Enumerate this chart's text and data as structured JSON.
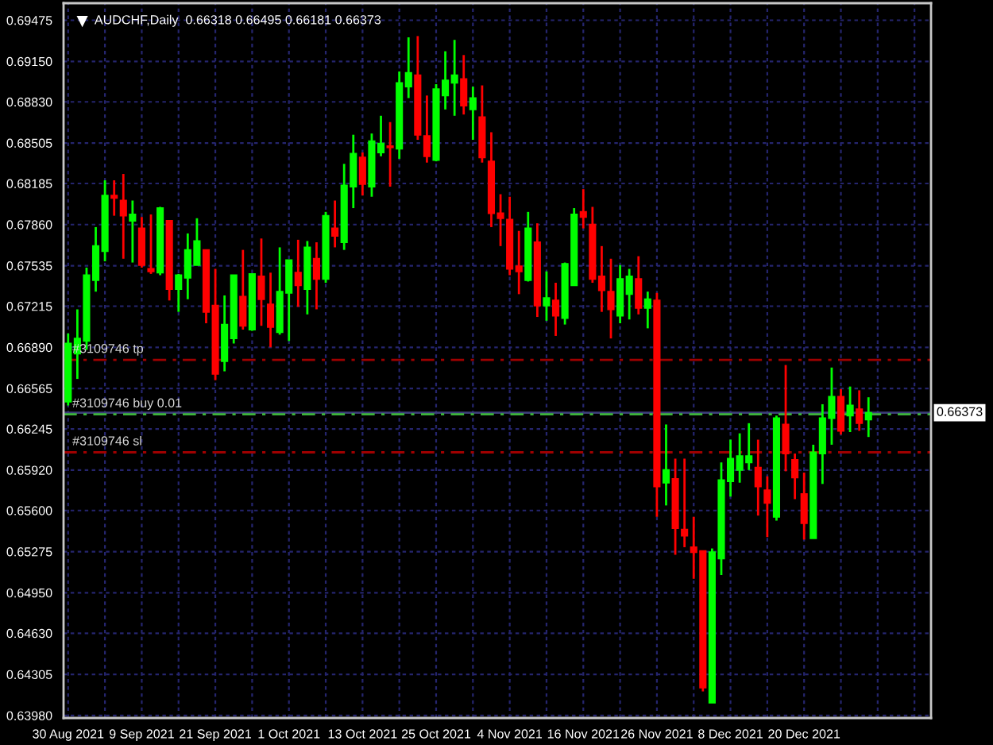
{
  "chart_data": {
    "type": "candlestick",
    "title": "AUDCHF,Daily  0.66318 0.66495 0.66181 0.66373",
    "categories": [
      "30 Aug 2021",
      null,
      null,
      null,
      null,
      null,
      null,
      null,
      "9 Sep 2021",
      null,
      null,
      null,
      null,
      null,
      null,
      null,
      "21 Sep 2021",
      null,
      null,
      null,
      null,
      null,
      null,
      null,
      "1 Oct 2021",
      null,
      null,
      null,
      null,
      null,
      null,
      null,
      "13 Oct 2021",
      null,
      null,
      null,
      null,
      null,
      null,
      null,
      "25 Oct 2021",
      null,
      null,
      null,
      null,
      null,
      null,
      null,
      "4 Nov 2021",
      null,
      null,
      null,
      null,
      null,
      null,
      null,
      "16 Nov 2021",
      null,
      null,
      null,
      null,
      null,
      null,
      null,
      "26 Nov 2021",
      null,
      null,
      null,
      null,
      null,
      null,
      null,
      "8 Dec 2021",
      null,
      null,
      null,
      null,
      null,
      null,
      null,
      "20 Dec 2021",
      null,
      null,
      null,
      null,
      null,
      null,
      null
    ],
    "ohlc": [
      [
        0.6646,
        0.67,
        0.6643,
        0.6692
      ],
      [
        0.6684,
        0.6719,
        0.6664,
        0.6696
      ],
      [
        0.6694,
        0.6752,
        0.6687,
        0.6746
      ],
      [
        0.6742,
        0.6784,
        0.6733,
        0.6769
      ],
      [
        0.6765,
        0.6821,
        0.6757,
        0.6809
      ],
      [
        0.6809,
        0.6821,
        0.6793,
        0.6807
      ],
      [
        0.6805,
        0.6826,
        0.6759,
        0.6793
      ],
      [
        0.6789,
        0.6805,
        0.6756,
        0.6794
      ],
      [
        0.6783,
        0.6792,
        0.6752,
        0.6754
      ],
      [
        0.6751,
        0.6794,
        0.6747,
        0.6749
      ],
      [
        0.6748,
        0.68,
        0.6746,
        0.6799
      ],
      [
        0.6789,
        0.6789,
        0.6726,
        0.6735
      ],
      [
        0.6735,
        0.6747,
        0.6717,
        0.6746
      ],
      [
        0.6744,
        0.6779,
        0.6727,
        0.6766
      ],
      [
        0.6754,
        0.6791,
        0.6754,
        0.6773
      ],
      [
        0.6766,
        0.6766,
        0.6708,
        0.6717
      ],
      [
        0.6722,
        0.6751,
        0.6663,
        0.6668
      ],
      [
        0.6678,
        0.673,
        0.667,
        0.6707
      ],
      [
        0.6696,
        0.6746,
        0.6692,
        0.6746
      ],
      [
        0.6729,
        0.6766,
        0.6703,
        0.6706
      ],
      [
        0.6703,
        0.6747,
        0.6702,
        0.6747
      ],
      [
        0.6745,
        0.6775,
        0.6706,
        0.6727
      ],
      [
        0.6723,
        0.6748,
        0.6689,
        0.6705
      ],
      [
        0.6701,
        0.6768,
        0.6699,
        0.6733
      ],
      [
        0.6732,
        0.6758,
        0.6694,
        0.6758
      ],
      [
        0.6748,
        0.6774,
        0.6721,
        0.6738
      ],
      [
        0.6735,
        0.6773,
        0.6715,
        0.6768
      ],
      [
        0.6759,
        0.6772,
        0.6719,
        0.6743
      ],
      [
        0.6743,
        0.6796,
        0.674,
        0.6793
      ],
      [
        0.6783,
        0.6805,
        0.6768,
        0.6777
      ],
      [
        0.6772,
        0.6834,
        0.6766,
        0.6817
      ],
      [
        0.6816,
        0.6857,
        0.6799,
        0.6842
      ],
      [
        0.6839,
        0.6843,
        0.6809,
        0.6818
      ],
      [
        0.6816,
        0.6858,
        0.6808,
        0.6852
      ],
      [
        0.6843,
        0.6872,
        0.684,
        0.685
      ],
      [
        0.6848,
        0.6867,
        0.6816,
        0.6847
      ],
      [
        0.6846,
        0.6907,
        0.6838,
        0.6898
      ],
      [
        0.6895,
        0.6934,
        0.6886,
        0.6906
      ],
      [
        0.6904,
        0.6935,
        0.6853,
        0.6857
      ],
      [
        0.6856,
        0.6888,
        0.6835,
        0.684
      ],
      [
        0.6837,
        0.6897,
        0.6836,
        0.6893
      ],
      [
        0.6888,
        0.6923,
        0.6877,
        0.69
      ],
      [
        0.6898,
        0.6932,
        0.6872,
        0.6904
      ],
      [
        0.6901,
        0.692,
        0.6873,
        0.688
      ],
      [
        0.6877,
        0.6895,
        0.6853,
        0.6886
      ],
      [
        0.6871,
        0.6896,
        0.6835,
        0.6839
      ],
      [
        0.6836,
        0.6859,
        0.6784,
        0.6795
      ],
      [
        0.6795,
        0.681,
        0.6769,
        0.6791
      ],
      [
        0.679,
        0.6808,
        0.6746,
        0.6751
      ],
      [
        0.6753,
        0.6781,
        0.6731,
        0.6749
      ],
      [
        0.6742,
        0.6796,
        0.6741,
        0.6783
      ],
      [
        0.6772,
        0.6787,
        0.6713,
        0.6722
      ],
      [
        0.6722,
        0.6749,
        0.671,
        0.6728
      ],
      [
        0.6726,
        0.674,
        0.6698,
        0.6714
      ],
      [
        0.6712,
        0.6756,
        0.6707,
        0.6755
      ],
      [
        0.6738,
        0.6799,
        0.6738,
        0.6794
      ],
      [
        0.6796,
        0.6814,
        0.6783,
        0.6792
      ],
      [
        0.6786,
        0.68,
        0.674,
        0.6743
      ],
      [
        0.6745,
        0.6769,
        0.6717,
        0.6734
      ],
      [
        0.6733,
        0.6759,
        0.6696,
        0.6719
      ],
      [
        0.6714,
        0.6754,
        0.6708,
        0.6743
      ],
      [
        0.6731,
        0.6751,
        0.6711,
        0.6745
      ],
      [
        0.6743,
        0.6761,
        0.6715,
        0.672
      ],
      [
        0.672,
        0.6733,
        0.6704,
        0.6727
      ],
      [
        0.6726,
        0.6732,
        0.6555,
        0.6579
      ],
      [
        0.6582,
        0.6628,
        0.6564,
        0.6592
      ],
      [
        0.6585,
        0.6601,
        0.6525,
        0.6546
      ],
      [
        0.6545,
        0.6601,
        0.6531,
        0.654
      ],
      [
        0.6531,
        0.6555,
        0.6506,
        0.6527
      ],
      [
        0.6528,
        0.6528,
        0.6417,
        0.642
      ],
      [
        0.6408,
        0.653,
        0.6408,
        0.6527
      ],
      [
        0.6522,
        0.6598,
        0.6509,
        0.6584
      ],
      [
        0.6583,
        0.6616,
        0.6571,
        0.6601
      ],
      [
        0.6592,
        0.6621,
        0.6582,
        0.6603
      ],
      [
        0.6598,
        0.6629,
        0.6592,
        0.6603
      ],
      [
        0.6594,
        0.6616,
        0.6556,
        0.6579
      ],
      [
        0.6576,
        0.6587,
        0.6539,
        0.6566
      ],
      [
        0.6555,
        0.6635,
        0.6552,
        0.6633
      ],
      [
        0.6628,
        0.6675,
        0.6591,
        0.6605
      ],
      [
        0.66,
        0.6605,
        0.6569,
        0.6586
      ],
      [
        0.6573,
        0.659,
        0.6537,
        0.655
      ],
      [
        0.6538,
        0.6612,
        0.6538,
        0.6606
      ],
      [
        0.6605,
        0.6644,
        0.6581,
        0.6633
      ],
      [
        0.6633,
        0.6673,
        0.6612,
        0.665
      ],
      [
        0.665,
        0.6656,
        0.662,
        0.6623
      ],
      [
        0.6635,
        0.6658,
        0.6622,
        0.6643
      ],
      [
        0.664,
        0.6655,
        0.6623,
        0.6629
      ],
      [
        0.66318,
        0.66495,
        0.66181,
        0.66373
      ]
    ],
    "colors": [
      "#00ff00",
      "#00ff00",
      "#00ff00",
      "#00ff00",
      "#00ff00",
      "#ff0000",
      "#ff0000",
      "#00ff00",
      "#ff0000",
      "#ff0000",
      "#00ff00",
      "#ff0000",
      "#00ff00",
      "#00ff00",
      "#00ff00",
      "#ff0000",
      "#ff0000",
      "#00ff00",
      "#00ff00",
      "#ff0000",
      "#00ff00",
      "#ff0000",
      "#ff0000",
      "#00ff00",
      "#00ff00",
      "#ff0000",
      "#00ff00",
      "#ff0000",
      "#00ff00",
      "#ff0000",
      "#00ff00",
      "#00ff00",
      "#ff0000",
      "#00ff00",
      "#00ff00",
      "#ff0000",
      "#00ff00",
      "#00ff00",
      "#ff0000",
      "#ff0000",
      "#00ff00",
      "#00ff00",
      "#00ff00",
      "#ff0000",
      "#00ff00",
      "#ff0000",
      "#ff0000",
      "#ff0000",
      "#ff0000",
      "#ff0000",
      "#00ff00",
      "#ff0000",
      "#00ff00",
      "#ff0000",
      "#00ff00",
      "#00ff00",
      "#ff0000",
      "#ff0000",
      "#ff0000",
      "#ff0000",
      "#00ff00",
      "#00ff00",
      "#ff0000",
      "#00ff00",
      "#ff0000",
      "#00ff00",
      "#ff0000",
      "#ff0000",
      "#ff0000",
      "#ff0000",
      "#00ff00",
      "#00ff00",
      "#00ff00",
      "#00ff00",
      "#00ff00",
      "#ff0000",
      "#ff0000",
      "#00ff00",
      "#ff0000",
      "#ff0000",
      "#ff0000",
      "#00ff00",
      "#00ff00",
      "#00ff00",
      "#ff0000",
      "#00ff00",
      "#ff0000",
      "#00ff00"
    ],
    "ylim": [
      0.6396,
      0.6961
    ],
    "yticks": [
      {
        "value": 0.69475,
        "label": "0.69475"
      },
      {
        "value": 0.6915,
        "label": "0.69150"
      },
      {
        "value": 0.6883,
        "label": "0.68830"
      },
      {
        "value": 0.68505,
        "label": "0.68505"
      },
      {
        "value": 0.68185,
        "label": "0.68185"
      },
      {
        "value": 0.6786,
        "label": "0.67860"
      },
      {
        "value": 0.67535,
        "label": "0.67535"
      },
      {
        "value": 0.67215,
        "label": "0.67215"
      },
      {
        "value": 0.6689,
        "label": "0.66890"
      },
      {
        "value": 0.66565,
        "label": "0.66565"
      },
      {
        "value": 0.66245,
        "label": "0.66245"
      },
      {
        "value": 0.6592,
        "label": "0.65920"
      },
      {
        "value": 0.656,
        "label": "0.65600"
      },
      {
        "value": 0.65275,
        "label": "0.65275"
      },
      {
        "value": 0.6495,
        "label": "0.64950"
      },
      {
        "value": 0.6463,
        "label": "0.64630"
      },
      {
        "value": 0.64305,
        "label": "0.64305"
      },
      {
        "value": 0.6398,
        "label": "0.63980"
      }
    ],
    "grid": true,
    "ref_lines": [
      {
        "axis": "y",
        "value": 0.6679,
        "label": "#3109746 tp",
        "color": "#a00000",
        "line_style": "dashed"
      },
      {
        "axis": "y",
        "value": 0.66373,
        "label": "0.66373",
        "color": "#3c3c78",
        "line_style": "solid"
      },
      {
        "axis": "y",
        "value": 0.6636,
        "label": "#3109746 buy 0.01",
        "color": "#3cb43c",
        "line_style": "dashed"
      },
      {
        "axis": "y",
        "value": 0.6606,
        "label": "#3109746 sl",
        "color": "#a00000",
        "line_style": "dashed"
      }
    ]
  }
}
